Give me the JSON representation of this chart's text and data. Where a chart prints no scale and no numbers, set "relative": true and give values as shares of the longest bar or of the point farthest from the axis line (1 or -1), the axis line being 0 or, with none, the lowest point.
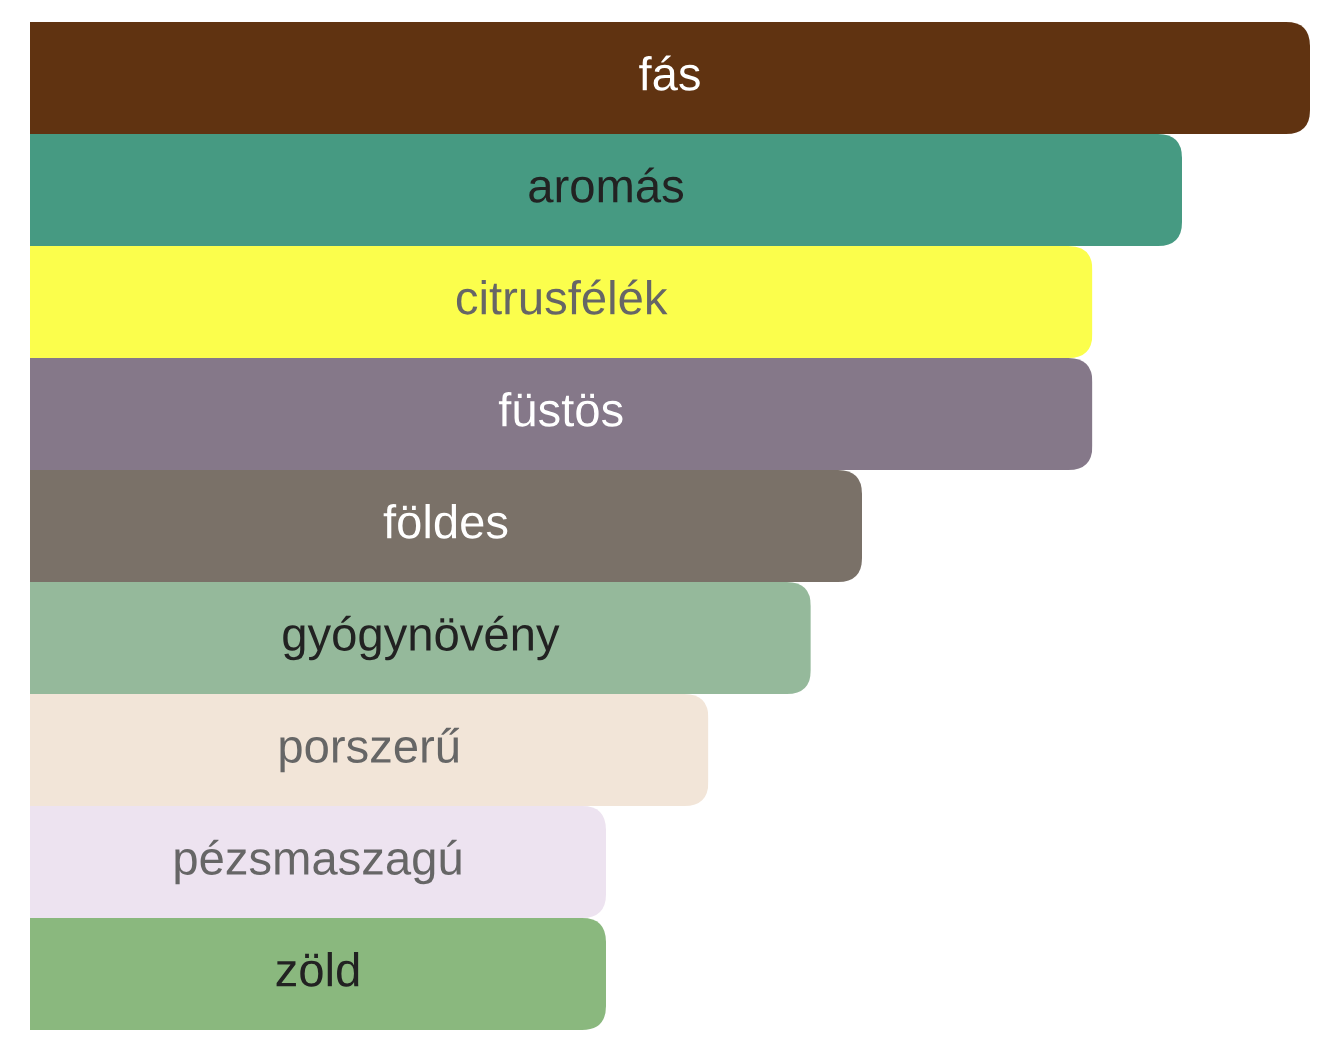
{
  "chart_data": {
    "type": "bar",
    "orientation": "horizontal",
    "relative": true,
    "categories": [
      "fás",
      "aromás",
      "citrusfélék",
      "füstös",
      "földes",
      "gyógynövény",
      "porszerű",
      "pézsmaszagú",
      "zöld"
    ],
    "values": [
      1,
      0.9,
      0.83,
      0.83,
      0.65,
      0.61,
      0.53,
      0.45,
      0.45
    ],
    "colors": [
      "#603311",
      "#469a82",
      "#fbfe4c",
      "#857889",
      "#7a7168",
      "#95b99b",
      "#f2e5d8",
      "#ede3f0",
      "#8ab87e"
    ]
  }
}
